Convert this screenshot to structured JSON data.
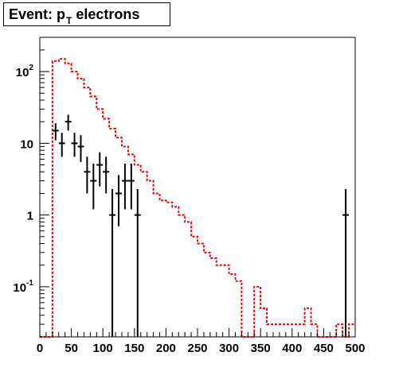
{
  "title": {
    "main": "Event: p",
    "subscript": "T",
    "rest": " electrons"
  },
  "chart_data": {
    "type": "histogram",
    "x_ticks": [
      0,
      50,
      100,
      150,
      200,
      250,
      300,
      350,
      400,
      450,
      500
    ],
    "xlim": [
      0,
      500
    ],
    "ylim": [
      0.02,
      300
    ],
    "y_scale": "log",
    "y_tick_labels": [
      {
        "value": 100,
        "base": "10",
        "exp": "2"
      },
      {
        "value": 10,
        "base": "10",
        "exp": ""
      },
      {
        "value": 1,
        "base": "1",
        "exp": ""
      },
      {
        "value": 0.1,
        "base": "10",
        "exp": "-1"
      }
    ],
    "grid": false,
    "series": [
      {
        "style": "red dashed histogram",
        "color": "#e8000b",
        "bin_width": 10,
        "bin_edges_start": 0,
        "values": [
          0.02,
          0.02,
          140,
          150,
          130,
          100,
          80,
          60,
          45,
          30,
          22,
          16,
          12,
          9,
          7,
          5,
          4,
          3,
          2,
          1.6,
          1.5,
          1.3,
          1.0,
          0.8,
          0.5,
          0.4,
          0.3,
          0.25,
          0.2,
          0.2,
          0.15,
          0.12,
          0.02,
          0.02,
          0.1,
          0.05,
          0.03,
          0.03,
          0.03,
          0.03,
          0.03,
          0.03,
          0.05,
          0.03,
          0.02,
          0.02,
          0.02,
          0.03,
          0.02,
          0.03
        ]
      },
      {
        "style": "black points with error bars",
        "color": "#000000",
        "points": [
          {
            "x": 25,
            "y": 15,
            "lo": 11,
            "hi": 19
          },
          {
            "x": 35,
            "y": 10,
            "lo": 6.5,
            "hi": 14
          },
          {
            "x": 45,
            "y": 20,
            "lo": 15,
            "hi": 25
          },
          {
            "x": 55,
            "y": 10,
            "lo": 6.5,
            "hi": 14
          },
          {
            "x": 65,
            "y": 9,
            "lo": 5.5,
            "hi": 13
          },
          {
            "x": 75,
            "y": 4,
            "lo": 2,
            "hi": 6.5
          },
          {
            "x": 85,
            "y": 3,
            "lo": 1.2,
            "hi": 5.2
          },
          {
            "x": 95,
            "y": 5,
            "lo": 2.5,
            "hi": 7.5
          },
          {
            "x": 105,
            "y": 4,
            "lo": 2,
            "hi": 6.5
          },
          {
            "x": 115,
            "y": 1,
            "lo": 0.02,
            "hi": 2.3
          },
          {
            "x": 125,
            "y": 2,
            "lo": 0.7,
            "hi": 3.6
          },
          {
            "x": 135,
            "y": 3,
            "lo": 1.2,
            "hi": 5.2
          },
          {
            "x": 145,
            "y": 3,
            "lo": 1.2,
            "hi": 5.2
          },
          {
            "x": 155,
            "y": 1,
            "lo": 0.02,
            "hi": 2.3
          },
          {
            "x": 485,
            "y": 1,
            "lo": 0.02,
            "hi": 2.3
          }
        ]
      }
    ]
  }
}
